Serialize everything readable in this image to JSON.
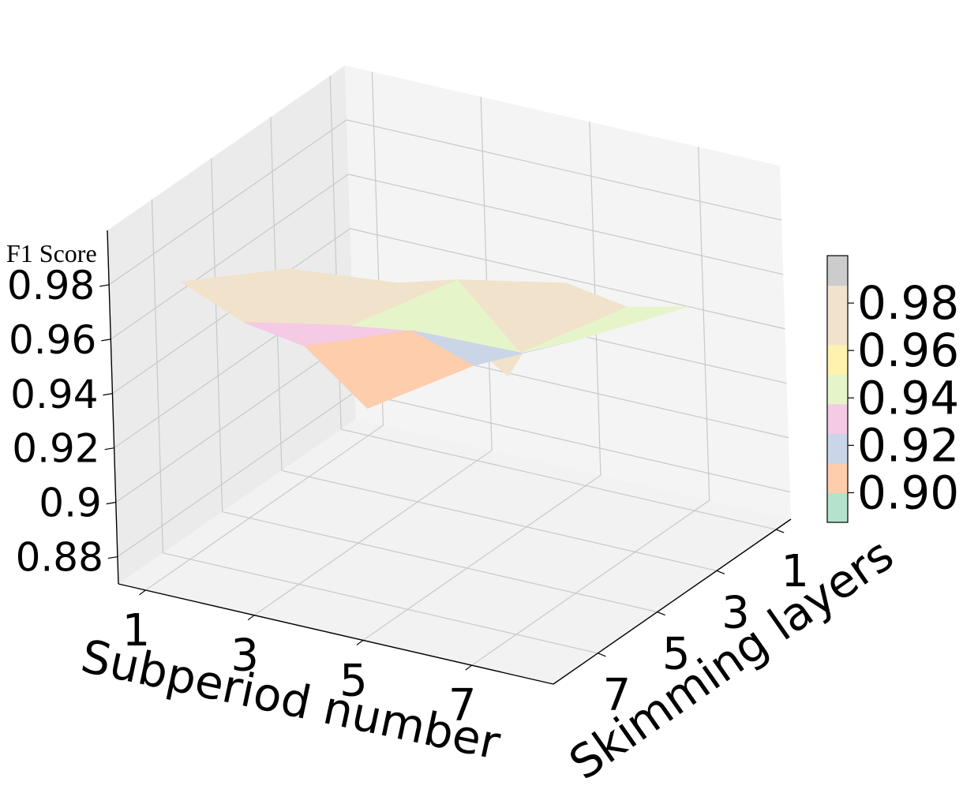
{
  "chart_data": {
    "type": "surface",
    "zlabel": "F1 Score",
    "xlabel": "Subperiod number",
    "ylabel": "Skimming layers",
    "x_ticks": [
      "1",
      "3",
      "5",
      "7"
    ],
    "y_ticks": [
      "1",
      "3",
      "5",
      "7"
    ],
    "z_ticks": [
      "0.88",
      "0.9",
      "0.92",
      "0.94",
      "0.96",
      "0.98"
    ],
    "x_values": [
      1,
      3,
      5,
      7
    ],
    "y_values": [
      1,
      3,
      5,
      7
    ],
    "x_range": [
      0.5,
      8.5
    ],
    "y_range": [
      0.5,
      8.5
    ],
    "z_range": [
      0.87,
      1.0
    ],
    "grid": true,
    "surface_z": [
      [
        0.88,
        0.918,
        0.942,
        0.972
      ],
      [
        0.905,
        0.933,
        0.95,
        0.986
      ],
      [
        0.924,
        0.934,
        0.976,
        0.99
      ],
      [
        0.945,
        0.96,
        0.984,
        0.965
      ]
    ],
    "colorbar": {
      "ticks": [
        "0.90",
        "0.92",
        "0.94",
        "0.96",
        "0.98"
      ],
      "tick_values": [
        0.9,
        0.92,
        0.94,
        0.96,
        0.98
      ],
      "min": 0.8875,
      "max": 1.0,
      "levels": [
        0.8875,
        0.9,
        0.9125,
        0.925,
        0.9375,
        0.95,
        0.9625,
        0.975,
        0.9875,
        1.0
      ],
      "colors": [
        "#b3e2cd",
        "#fdcdac",
        "#cbd5e8",
        "#f4cae4",
        "#e6f5c9",
        "#fff2ae",
        "#f1e2cc",
        "#f1e2cc",
        "#cccccc"
      ]
    }
  }
}
